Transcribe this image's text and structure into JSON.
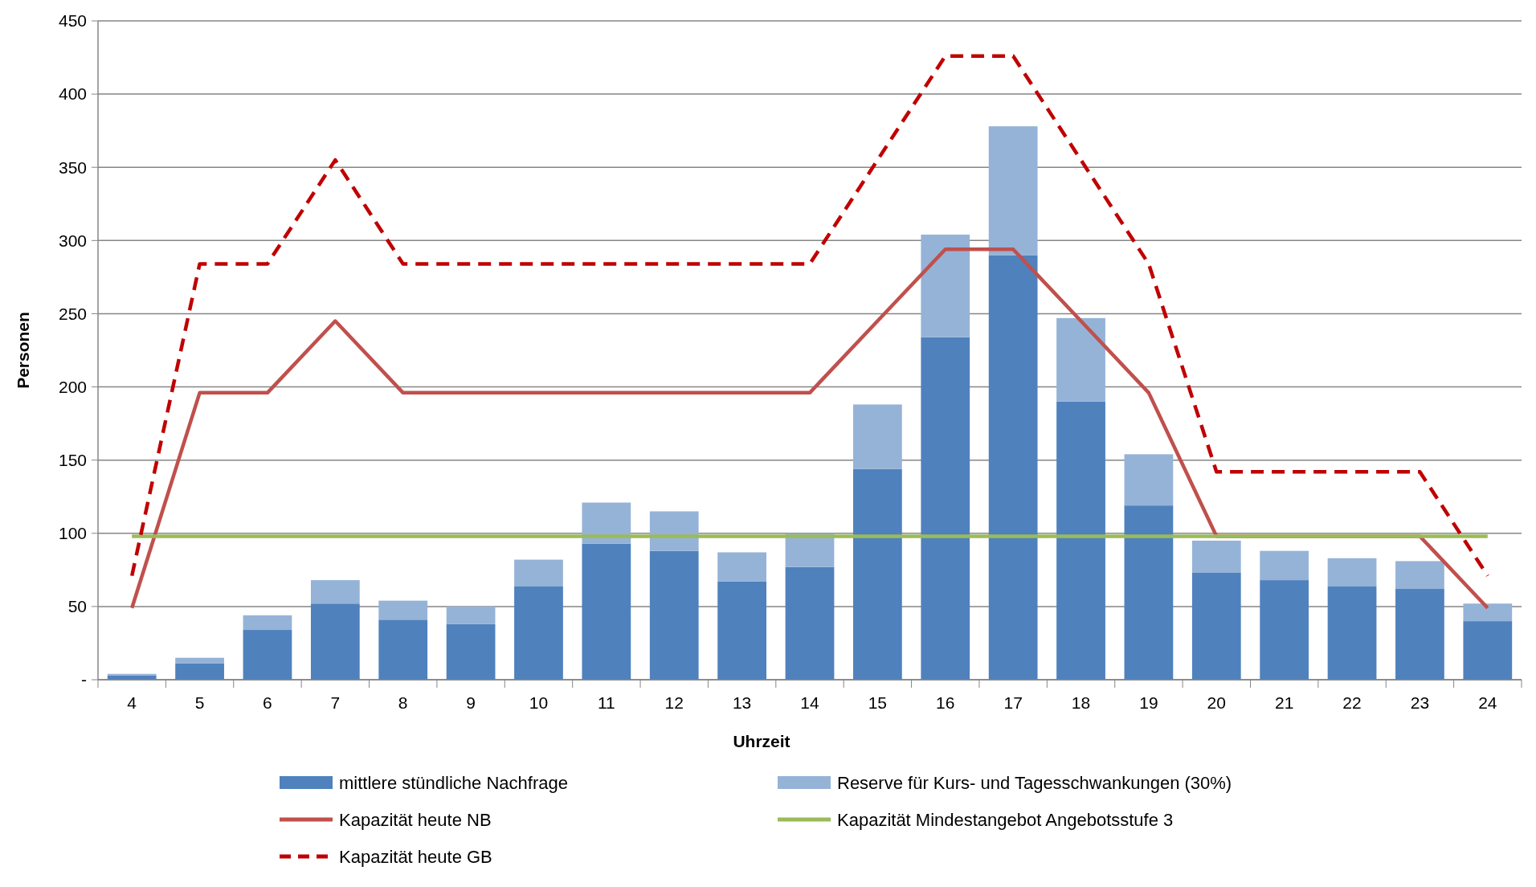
{
  "chart_data": {
    "type": "bar",
    "stacked": true,
    "xlabel": "Uhrzeit",
    "ylabel": "Personen",
    "categories": [
      "4",
      "5",
      "6",
      "7",
      "8",
      "9",
      "10",
      "11",
      "12",
      "13",
      "14",
      "15",
      "16",
      "17",
      "18",
      "19",
      "20",
      "21",
      "22",
      "23",
      "24"
    ],
    "ylim": [
      0,
      450
    ],
    "yticks": [
      {
        "value": 0,
        "label": "-"
      },
      50,
      100,
      150,
      200,
      250,
      300,
      350,
      400,
      450
    ],
    "grid": "y",
    "legend": "bottom",
    "series": [
      {
        "name": "mittlere stündliche Nachfrage",
        "color": "#4f81bd",
        "values": [
          3,
          11,
          34,
          52,
          41,
          38,
          64,
          93,
          88,
          67,
          77,
          144,
          234,
          290,
          190,
          119,
          73,
          68,
          64,
          62,
          40
        ]
      },
      {
        "name": "Reserve für Kurs- und Tagesschwankungen (30%)",
        "color": "#95b3d7",
        "values": [
          1,
          4,
          10,
          16,
          13,
          12,
          18,
          28,
          27,
          20,
          23,
          44,
          70,
          88,
          57,
          35,
          22,
          20,
          19,
          19,
          12
        ]
      },
      {
        "name": "Kapazität heute NB",
        "type": "line",
        "color": "#c0504d",
        "line_style": "solid",
        "values": [
          49,
          196,
          196,
          245,
          196,
          196,
          196,
          196,
          196,
          196,
          196,
          245,
          294,
          294,
          245,
          196,
          98,
          98,
          98,
          98,
          49
        ]
      },
      {
        "name": "Kapazität Mindestangebot Angebotsstufe 3",
        "type": "line",
        "color": "#9bbb59",
        "line_style": "solid",
        "values": [
          98,
          98,
          98,
          98,
          98,
          98,
          98,
          98,
          98,
          98,
          98,
          98,
          98,
          98,
          98,
          98,
          98,
          98,
          98,
          98,
          98
        ]
      },
      {
        "name": "Kapazität heute GB",
        "type": "line",
        "color": "#c00000",
        "line_style": "dashed",
        "values": [
          71,
          284,
          284,
          355,
          284,
          284,
          284,
          284,
          284,
          284,
          284,
          355,
          426,
          426,
          355,
          284,
          142,
          142,
          142,
          142,
          71
        ]
      }
    ]
  }
}
